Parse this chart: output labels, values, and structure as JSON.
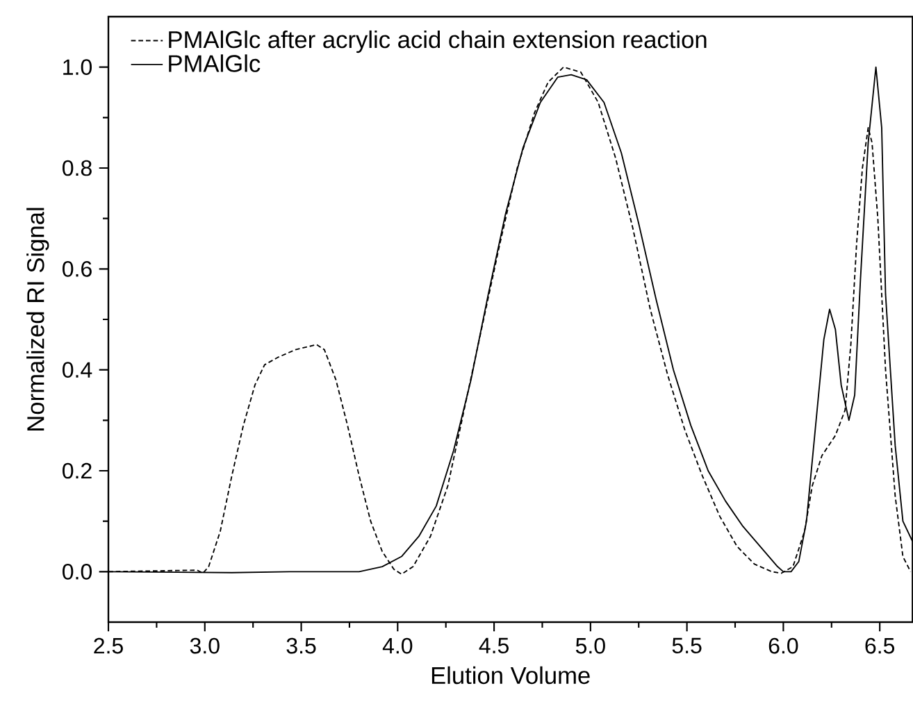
{
  "chart_data": {
    "type": "line",
    "xlabel": "Elution Volume",
    "ylabel": "Normalized RI Signal",
    "xlim": [
      2.5,
      6.67
    ],
    "ylim": [
      -0.1,
      1.1
    ],
    "xticks": [
      {
        "value": 2.5,
        "label": "2.5"
      },
      {
        "value": 3,
        "label": "3.0"
      },
      {
        "value": 3.5,
        "label": "3.5"
      },
      {
        "value": 4,
        "label": "4.0"
      },
      {
        "value": 4.5,
        "label": "4.5"
      },
      {
        "value": 5,
        "label": "5.0"
      },
      {
        "value": 5.5,
        "label": "5.5"
      },
      {
        "value": 6,
        "label": "6.0"
      },
      {
        "value": 6.5,
        "label": "6.5"
      }
    ],
    "yticks": [
      {
        "value": 0,
        "label": "0.0"
      },
      {
        "value": 0.2,
        "label": "0.2"
      },
      {
        "value": 0.4,
        "label": "0.4"
      },
      {
        "value": 0.6,
        "label": "0.6"
      },
      {
        "value": 0.8,
        "label": "0.8"
      },
      {
        "value": 1,
        "label": "1.0"
      }
    ],
    "grid": false,
    "legend": "top left",
    "marker": "none",
    "series": [
      {
        "name": "PMAlGlc after acrylic acid chain extension reaction",
        "color": "#000000",
        "line_style": "dashed",
        "x": [
          2.5,
          2.96,
          2.99,
          3.02,
          3.08,
          3.14,
          3.2,
          3.26,
          3.31,
          3.38,
          3.47,
          3.58,
          3.62,
          3.68,
          3.74,
          3.8,
          3.86,
          3.92,
          3.98,
          4.02,
          4.08,
          4.17,
          4.26,
          4.35,
          4.44,
          4.53,
          4.62,
          4.71,
          4.78,
          4.86,
          4.95,
          5.04,
          5.13,
          5.22,
          5.31,
          5.4,
          5.49,
          5.58,
          5.67,
          5.76,
          5.85,
          5.94,
          5.99,
          6.05,
          6.11,
          6.15,
          6.2,
          6.27,
          6.32,
          6.35,
          6.38,
          6.41,
          6.44,
          6.46,
          6.49,
          6.53,
          6.58,
          6.62,
          6.66
        ],
        "values": [
          0,
          0.003,
          -0.003,
          0.01,
          0.08,
          0.19,
          0.29,
          0.37,
          0.41,
          0.425,
          0.44,
          0.45,
          0.44,
          0.38,
          0.29,
          0.19,
          0.1,
          0.04,
          0.005,
          -0.005,
          0.01,
          0.07,
          0.17,
          0.33,
          0.49,
          0.65,
          0.8,
          0.91,
          0.97,
          1.0,
          0.99,
          0.93,
          0.82,
          0.68,
          0.52,
          0.39,
          0.28,
          0.19,
          0.11,
          0.05,
          0.015,
          0.0,
          -0.003,
          0.01,
          0.08,
          0.17,
          0.23,
          0.27,
          0.32,
          0.45,
          0.65,
          0.8,
          0.88,
          0.85,
          0.7,
          0.4,
          0.15,
          0.03,
          0.0
        ]
      },
      {
        "name": "PMAlGlc",
        "color": "#000000",
        "line_style": "solid",
        "x": [
          2.5,
          3.14,
          3.44,
          3.8,
          3.92,
          4.02,
          4.11,
          4.2,
          4.29,
          4.38,
          4.47,
          4.56,
          4.65,
          4.74,
          4.83,
          4.9,
          4.98,
          5.07,
          5.16,
          5.25,
          5.34,
          5.43,
          5.52,
          5.61,
          5.7,
          5.79,
          5.88,
          5.97,
          6.0,
          6.04,
          6.08,
          6.12,
          6.17,
          6.21,
          6.24,
          6.27,
          6.3,
          6.34,
          6.37,
          6.4,
          6.44,
          6.48,
          6.51,
          6.53,
          6.58,
          6.62,
          6.67
        ],
        "values": [
          0,
          -0.002,
          0.0,
          0.0,
          0.01,
          0.03,
          0.07,
          0.13,
          0.24,
          0.38,
          0.55,
          0.71,
          0.84,
          0.93,
          0.98,
          0.985,
          0.975,
          0.93,
          0.83,
          0.69,
          0.54,
          0.4,
          0.29,
          0.2,
          0.14,
          0.09,
          0.05,
          0.01,
          0.0,
          0.0,
          0.02,
          0.1,
          0.3,
          0.46,
          0.52,
          0.48,
          0.37,
          0.3,
          0.35,
          0.58,
          0.85,
          1.0,
          0.88,
          0.55,
          0.25,
          0.1,
          0.06
        ]
      }
    ]
  }
}
